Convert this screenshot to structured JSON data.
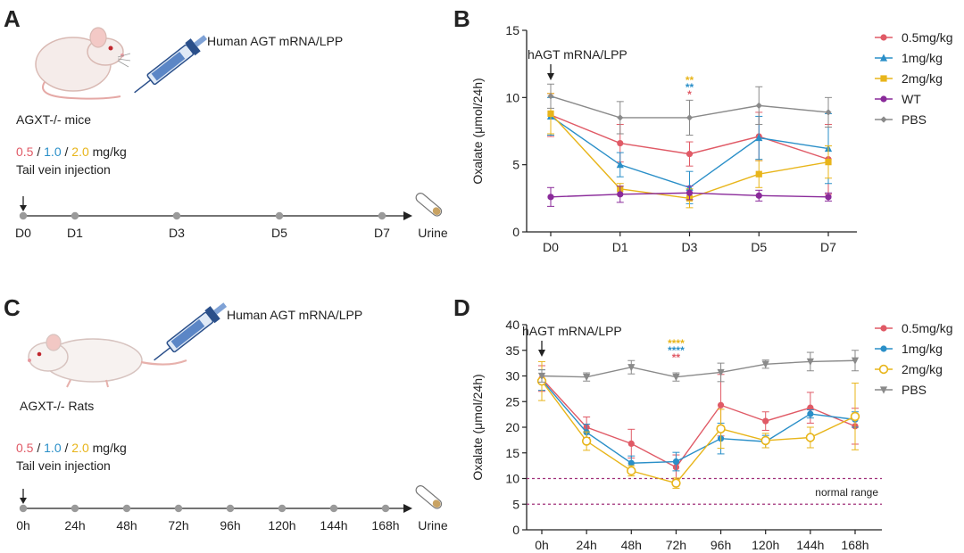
{
  "panels": {
    "A": {
      "letter": "A",
      "injection_label": "Human AGT mRNA/LPP",
      "model_label": "AGXT-/- mice",
      "doses": {
        "d1": "0.5",
        "d2": "1.0",
        "d3": "2.0",
        "sep": " / ",
        "unit": " mg/kg"
      },
      "route": "Tail vein injection",
      "timeline": [
        "D0",
        "D1",
        "D3",
        "D5",
        "D7"
      ],
      "end_label": "Urine"
    },
    "C": {
      "letter": "C",
      "injection_label": "Human AGT mRNA/LPP",
      "model_label": "AGXT-/- Rats",
      "doses": {
        "d1": "0.5",
        "d2": "1.0",
        "d3": "2.0",
        "sep": " / ",
        "unit": " mg/kg"
      },
      "route": "Tail vein injection",
      "timeline": [
        "0h",
        "24h",
        "48h",
        "72h",
        "96h",
        "120h",
        "144h",
        "168h"
      ],
      "end_label": "Urine"
    }
  },
  "colors": {
    "c05": "#e05a66",
    "c1": "#2a8fc8",
    "c2": "#e8b51a",
    "wt": "#8a2a9a",
    "pbs": "#8a8a8a",
    "ref": "#a0307a"
  },
  "chart_data": [
    {
      "panel": "B",
      "type": "line",
      "title": "",
      "ylabel": "Oxalate (μmol/24h)",
      "xlabel": "",
      "categories": [
        "D0",
        "D1",
        "D3",
        "D5",
        "D7"
      ],
      "ylim": [
        0,
        15
      ],
      "yticks": [
        0,
        5,
        10,
        15
      ],
      "annotation": "hAGT mRNA/LPP",
      "significance": [
        {
          "text": "**",
          "color": "#e8b51a"
        },
        {
          "text": "**",
          "color": "#2a8fc8"
        },
        {
          "text": "*",
          "color": "#e05a66"
        }
      ],
      "series": [
        {
          "name": "0.5mg/kg",
          "color": "#e05a66",
          "marker": "circle",
          "values": [
            8.7,
            6.6,
            5.8,
            7.1,
            5.4
          ],
          "err": [
            1.6,
            1.4,
            0.9,
            1.8,
            2.6
          ]
        },
        {
          "name": "1mg/kg",
          "color": "#2a8fc8",
          "marker": "triangle",
          "values": [
            8.6,
            5.0,
            3.3,
            7.0,
            6.2
          ],
          "err": [
            1.4,
            0.9,
            1.2,
            1.6,
            2.6
          ]
        },
        {
          "name": "2mg/kg",
          "color": "#e8b51a",
          "marker": "square",
          "values": [
            8.8,
            3.2,
            2.5,
            4.3,
            5.2
          ],
          "err": [
            1.5,
            0.4,
            0.7,
            1.0,
            1.2
          ]
        },
        {
          "name": "WT",
          "color": "#8a2a9a",
          "marker": "circle",
          "values": [
            2.6,
            2.8,
            2.9,
            2.7,
            2.6
          ],
          "err": [
            0.7,
            0.6,
            0.5,
            0.4,
            0.3
          ]
        },
        {
          "name": "PBS",
          "color": "#8a8a8a",
          "marker": "diamond",
          "values": [
            10.1,
            8.5,
            8.5,
            9.4,
            8.9
          ],
          "err": [
            0.9,
            1.2,
            1.3,
            1.4,
            1.1
          ]
        }
      ]
    },
    {
      "panel": "D",
      "type": "line",
      "title": "",
      "ylabel": "Oxalate (μmol/24h)",
      "xlabel": "",
      "categories": [
        "0h",
        "24h",
        "48h",
        "72h",
        "96h",
        "120h",
        "144h",
        "168h"
      ],
      "ylim": [
        0,
        40
      ],
      "yticks": [
        0,
        5,
        10,
        15,
        20,
        25,
        30,
        35,
        40
      ],
      "annotation": "hAGT mRNA/LPP",
      "reference_lines": [
        {
          "y": 10
        },
        {
          "y": 5
        }
      ],
      "reference_label": "normal range",
      "significance": [
        {
          "text": "****",
          "color": "#e8b51a"
        },
        {
          "text": "****",
          "color": "#2a8fc8"
        },
        {
          "text": "**",
          "color": "#e05a66"
        }
      ],
      "series": [
        {
          "name": "0.5mg/kg",
          "color": "#e05a66",
          "marker": "circle",
          "values": [
            29.5,
            20.0,
            16.8,
            12.2,
            24.3,
            21.2,
            23.8,
            20.2
          ],
          "err": [
            2.5,
            2.0,
            2.8,
            2.4,
            6.0,
            1.8,
            3.0,
            3.5
          ]
        },
        {
          "name": "1mg/kg",
          "color": "#2a8fc8",
          "marker": "circle",
          "values": [
            29.2,
            19.0,
            13.0,
            13.3,
            17.8,
            17.2,
            22.6,
            21.5
          ],
          "err": [
            2.0,
            1.6,
            1.4,
            1.8,
            3.0,
            1.2,
            0.8,
            1.5
          ]
        },
        {
          "name": "2mg/kg",
          "color": "#e8b51a",
          "marker": "open-circle",
          "values": [
            29.0,
            17.3,
            11.5,
            9.1,
            19.7,
            17.4,
            18.0,
            22.1
          ],
          "err": [
            3.8,
            1.8,
            1.0,
            1.0,
            3.8,
            1.4,
            2.0,
            6.5
          ]
        },
        {
          "name": "PBS",
          "color": "#8a8a8a",
          "marker": "triangle-down",
          "values": [
            30.0,
            29.8,
            31.7,
            29.8,
            30.7,
            32.3,
            32.8,
            33.0
          ],
          "err": [
            1.2,
            0.8,
            1.3,
            0.8,
            1.8,
            0.8,
            1.8,
            2.0
          ]
        }
      ]
    }
  ]
}
